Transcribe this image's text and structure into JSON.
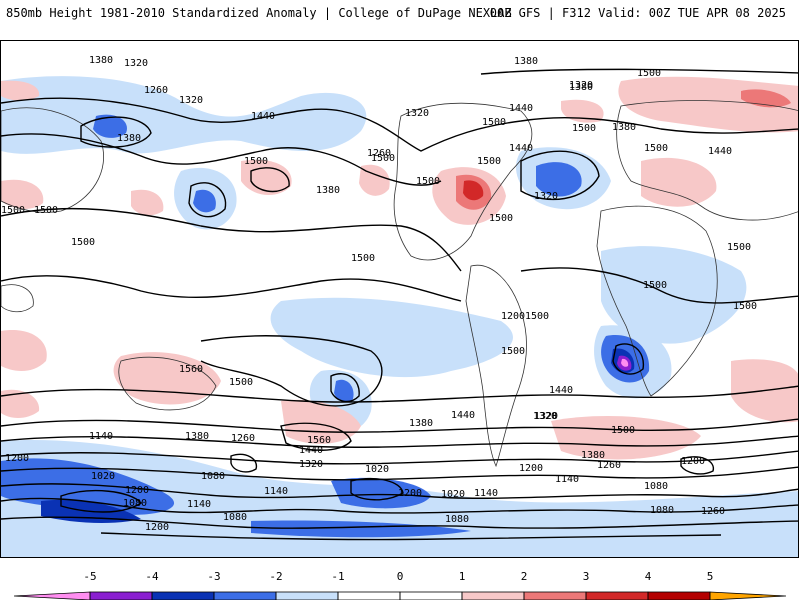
{
  "header": {
    "title_left": "850mb Height 1981-2010 Standardized Anomaly | College of DuPage NEXLAB",
    "title_right": "00Z GFS | F312 Valid: 00Z TUE APR 08 2025"
  },
  "map": {
    "contour_labels": [
      "1380",
      "1320",
      "1260",
      "1320",
      "1440",
      "1380",
      "1500",
      "1500",
      "1440",
      "1380",
      "1320",
      "1380",
      "1260",
      "1500",
      "1440",
      "1500",
      "1380",
      "1320",
      "1500",
      "1500",
      "1500",
      "1500",
      "1500",
      "1560",
      "1500",
      "1500",
      "1440",
      "1320",
      "1140",
      "1380",
      "1260",
      "1560",
      "1440",
      "1320",
      "1200",
      "1020",
      "1080",
      "1140",
      "1200",
      "1140",
      "1080",
      "1080",
      "1020",
      "1200",
      "1020",
      "1140",
      "1080",
      "1200",
      "1380",
      "1440",
      "1320",
      "1200",
      "1260",
      "1500",
      "1380",
      "1140",
      "1080",
      "1200",
      "1260",
      "1080",
      "1200",
      "1500",
      "1500",
      "1380",
      "1500",
      "1320",
      "1500",
      "1500",
      "1500",
      "1500",
      "1440",
      "1500"
    ],
    "colors": {
      "-5": "#f05af0",
      "-4": "#8a1fd0",
      "-3": "#0a32b4",
      "-2": "#3c6ee6",
      "-1": "#c8e0fa",
      "0": "#ffffff",
      "1": "#f7c8c8",
      "2": "#ec7878",
      "3": "#d22828",
      "4": "#b40000",
      "5": "#ffa500"
    }
  },
  "colorbar": {
    "ticks": [
      "-5",
      "-4",
      "-3",
      "-2",
      "-1",
      "0",
      "1",
      "2",
      "3",
      "4",
      "5"
    ],
    "bins": [
      "#ff8ef0",
      "#8a1fd0",
      "#0a32b4",
      "#3c6ee6",
      "#c8e0fa",
      "#ffffff",
      "#ffffff",
      "#f7c8c8",
      "#ec7878",
      "#d22828",
      "#b40000",
      "#ffa500"
    ]
  }
}
